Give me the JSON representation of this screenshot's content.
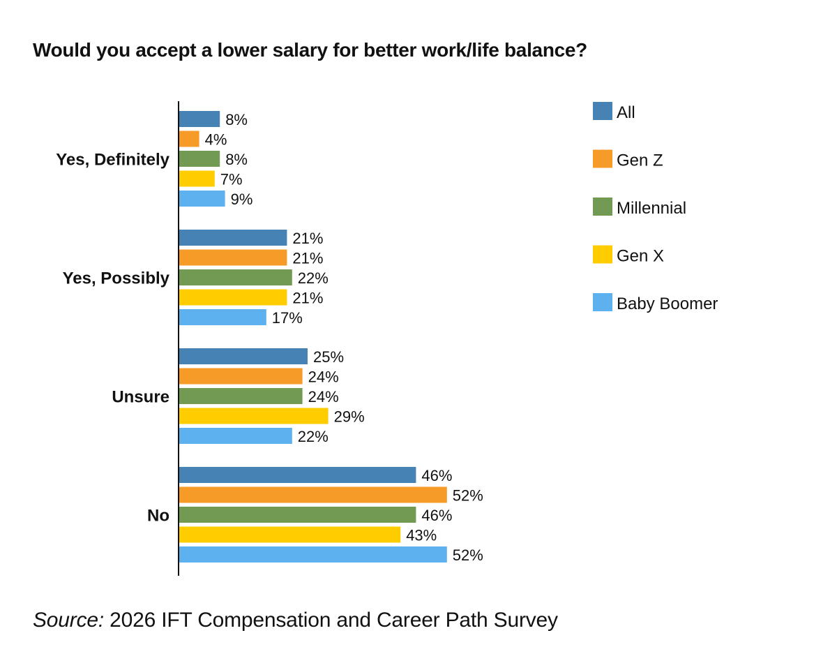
{
  "chart_data": {
    "type": "bar",
    "orientation": "horizontal",
    "title": "Would you accept a lower salary for better work/life balance?",
    "categories": [
      "Yes, Definitely",
      "Yes, Possibly",
      "Unsure",
      "No"
    ],
    "series": [
      {
        "name": "All",
        "color": "#4682B4",
        "values": [
          8,
          21,
          25,
          46
        ]
      },
      {
        "name": "Gen Z",
        "color": "#F79B28",
        "values": [
          4,
          21,
          24,
          52
        ]
      },
      {
        "name": "Millennial",
        "color": "#739A53",
        "values": [
          8,
          22,
          24,
          46
        ]
      },
      {
        "name": "Gen X",
        "color": "#FFCC00",
        "values": [
          7,
          21,
          29,
          43
        ]
      },
      {
        "name": "Baby Boomer",
        "color": "#5EB1EF",
        "values": [
          9,
          17,
          22,
          52
        ]
      }
    ],
    "value_suffix": "%",
    "xlim": [
      0,
      60
    ],
    "legend_position": "top-right",
    "grid": false
  },
  "source": {
    "label": "Source:",
    "text": "2026 IFT Compensation and Career Path Survey"
  }
}
